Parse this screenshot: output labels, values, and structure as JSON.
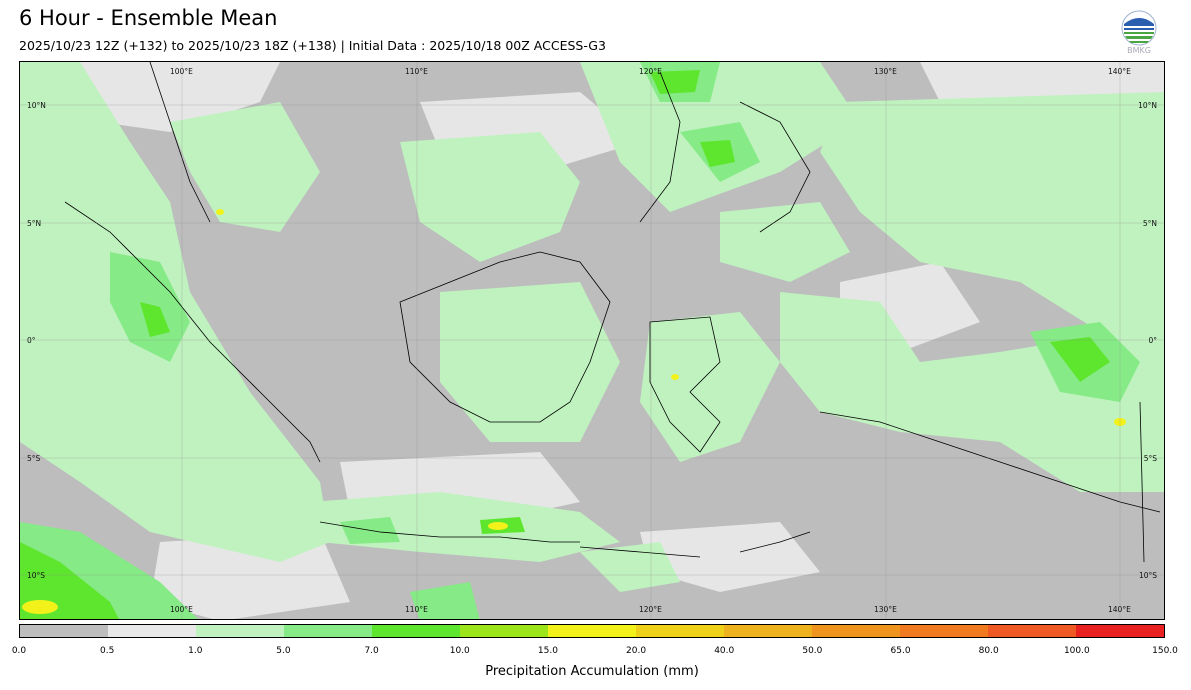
{
  "title": "6 Hour - Ensemble Mean",
  "subtitle": "2025/10/23 12Z (+132) to 2025/10/23 18Z (+138) | Initial Data : 2025/10/18 00Z ACCESS-G3",
  "logo": {
    "text": "BMKG",
    "icon": "bmkg-logo"
  },
  "map": {
    "lon_labels": [
      "100°E",
      "110°E",
      "120°E",
      "130°E",
      "140°E"
    ],
    "lat_labels": [
      "10°N",
      "5°N",
      "0°",
      "5°S",
      "10°S"
    ]
  },
  "colorbar": {
    "label": "Precipitation Accumulation (mm)",
    "ticks": [
      "0.0",
      "0.5",
      "1.0",
      "5.0",
      "7.0",
      "10.0",
      "15.0",
      "20.0",
      "40.0",
      "50.0",
      "65.0",
      "80.0",
      "100.0",
      "150.0"
    ],
    "colors": [
      "#bdbdbd",
      "#e8e8e8",
      "#bff2bf",
      "#86ea86",
      "#5ee62e",
      "#9be51a",
      "#f2f21a",
      "#efd11a",
      "#eeb21f",
      "#ef951f",
      "#ef7a20",
      "#ef5a24",
      "#e92221",
      "#e6189e"
    ]
  }
}
